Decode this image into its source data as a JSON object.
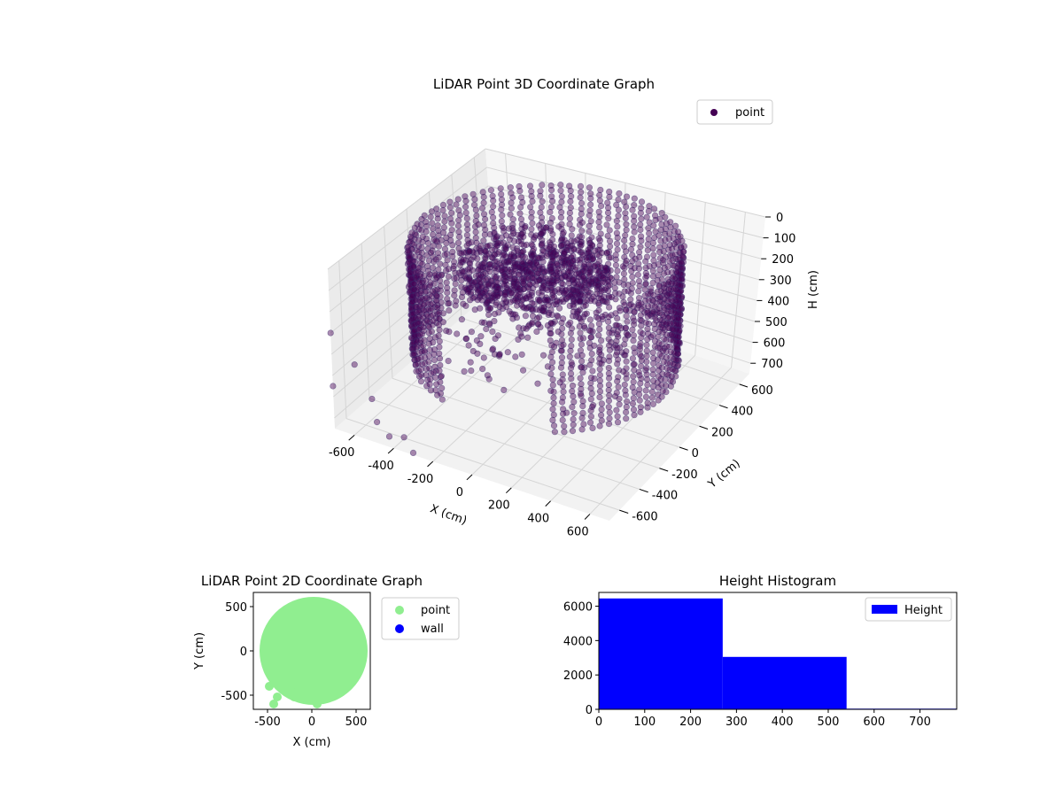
{
  "chart_data": [
    {
      "type": "scatter3d",
      "title": "LiDAR Point 3D Coordinate Graph",
      "xlabel": "X (cm)",
      "ylabel": "Y (cm)",
      "zlabel": "H (cm)",
      "xlim": [
        -700,
        700
      ],
      "ylim": [
        -700,
        700
      ],
      "zlim": [
        0,
        750
      ],
      "z_inverted": true,
      "xticks": [
        -600,
        -400,
        -200,
        0,
        200,
        400,
        600
      ],
      "yticks": [
        -600,
        -400,
        -200,
        0,
        200,
        400,
        600
      ],
      "zticks": [
        0,
        100,
        200,
        300,
        400,
        500,
        600,
        700
      ],
      "grid": true,
      "legend": {
        "position": "top-right",
        "entries": [
          "point"
        ]
      },
      "series": [
        {
          "name": "point",
          "color": "#440154",
          "alpha": 0.45,
          "structure": {
            "ring_radius": 600,
            "ring_height_range": [
              0,
              540
            ],
            "ring_gap_angle_deg": [
              250,
              300
            ],
            "interior_cluster_center": [
              -50,
              0,
              150
            ],
            "interior_cluster_radius": 330
          },
          "outliers": [
            [
              -700,
              -700,
              300
            ],
            [
              -700,
              -700,
              550
            ],
            [
              -620,
              -640,
              450
            ],
            [
              -550,
              -620,
              600
            ],
            [
              -480,
              -700,
              650
            ],
            [
              -420,
              -700,
              700
            ],
            [
              -380,
              -640,
              720
            ],
            [
              -300,
              -700,
              740
            ]
          ]
        }
      ]
    },
    {
      "type": "scatter",
      "title": "LiDAR Point 2D Coordinate Graph",
      "xlabel": "X (cm)",
      "ylabel": "Y (cm)",
      "xlim": [
        -660,
        660
      ],
      "ylim": [
        -660,
        660
      ],
      "xticks": [
        -500,
        0,
        500
      ],
      "yticks": [
        -500,
        0,
        500
      ],
      "legend": {
        "position": "outside-right",
        "entries": [
          "point",
          "wall"
        ]
      },
      "series": [
        {
          "name": "point",
          "color": "#90ee90",
          "disk_center": [
            20,
            0
          ],
          "disk_radius": 610,
          "extra_points": [
            [
              -480,
              -400
            ],
            [
              -430,
              -600
            ],
            [
              -390,
              -520
            ],
            [
              -300,
              -450
            ],
            [
              -200,
              -520
            ],
            [
              -150,
              -400
            ],
            [
              -50,
              -550
            ],
            [
              60,
              -600
            ],
            [
              560,
              0
            ]
          ]
        },
        {
          "name": "wall",
          "color": "#0000ff",
          "values": []
        }
      ]
    },
    {
      "type": "bar",
      "title": "Height Histogram",
      "xlabel": "",
      "ylabel": "",
      "bins": [
        {
          "from": 0,
          "to": 270,
          "count": 6450
        },
        {
          "from": 270,
          "to": 540,
          "count": 3050
        },
        {
          "from": 540,
          "to": 780,
          "count": 40
        }
      ],
      "xlim": [
        0,
        780
      ],
      "ylim": [
        0,
        6800
      ],
      "xticks": [
        0,
        100,
        200,
        300,
        400,
        500,
        600,
        700
      ],
      "yticks": [
        0,
        2000,
        4000,
        6000
      ],
      "legend": {
        "position": "top-right",
        "entries": [
          "Height"
        ]
      },
      "color": "#0000ff"
    }
  ]
}
